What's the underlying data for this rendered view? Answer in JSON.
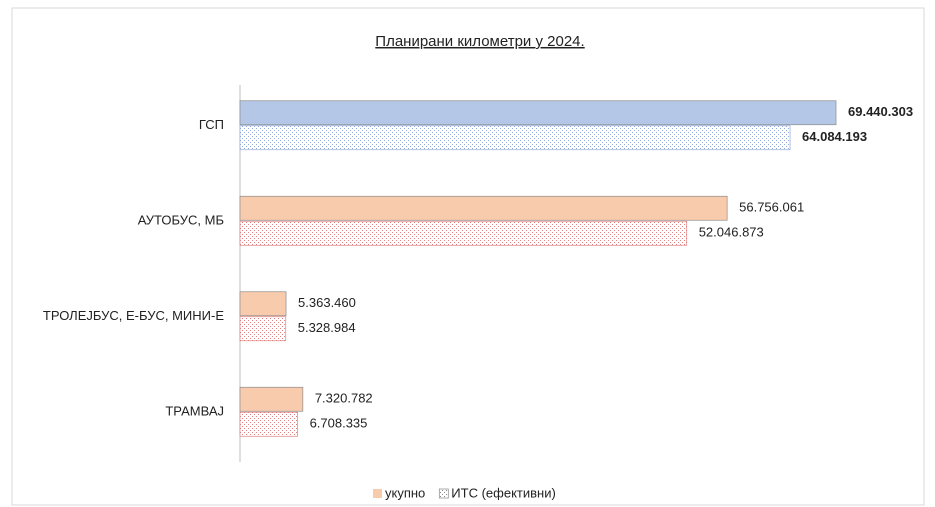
{
  "chart_data": {
    "type": "bar",
    "orientation": "horizontal",
    "title": "Планирани  километри у 2024.",
    "categories": [
      "ГСП",
      "АУТОБУС, МБ",
      "ТРОЛЕЈБУС, Е-БУС, МИНИ-Е",
      "ТРАМВАЈ"
    ],
    "series": [
      {
        "name": "укупно",
        "color": "#f8cbad",
        "colors": [
          "#b4c7e7",
          "#f8cbad",
          "#f8cbad",
          "#f8cbad"
        ],
        "label_color": "#111111",
        "values": [
          69440303,
          56756061,
          5363460,
          7320782
        ],
        "value_labels": [
          "69.440.303",
          "56.756.061",
          "5.363.460",
          "7.320.782"
        ]
      },
      {
        "name": "ИТС (ефективни)",
        "color": "#e3a0a0",
        "colors": [
          "#8faadc",
          "#e08080",
          "#e08080",
          "#e08080"
        ],
        "pattern": "dots",
        "label_color": "#c62828",
        "values": [
          64084193,
          52046873,
          5328984,
          6708335
        ],
        "value_labels": [
          "64.084.193",
          "52.046.873",
          "5.328.984",
          "6.708.335"
        ]
      }
    ],
    "legend": "bottom"
  }
}
